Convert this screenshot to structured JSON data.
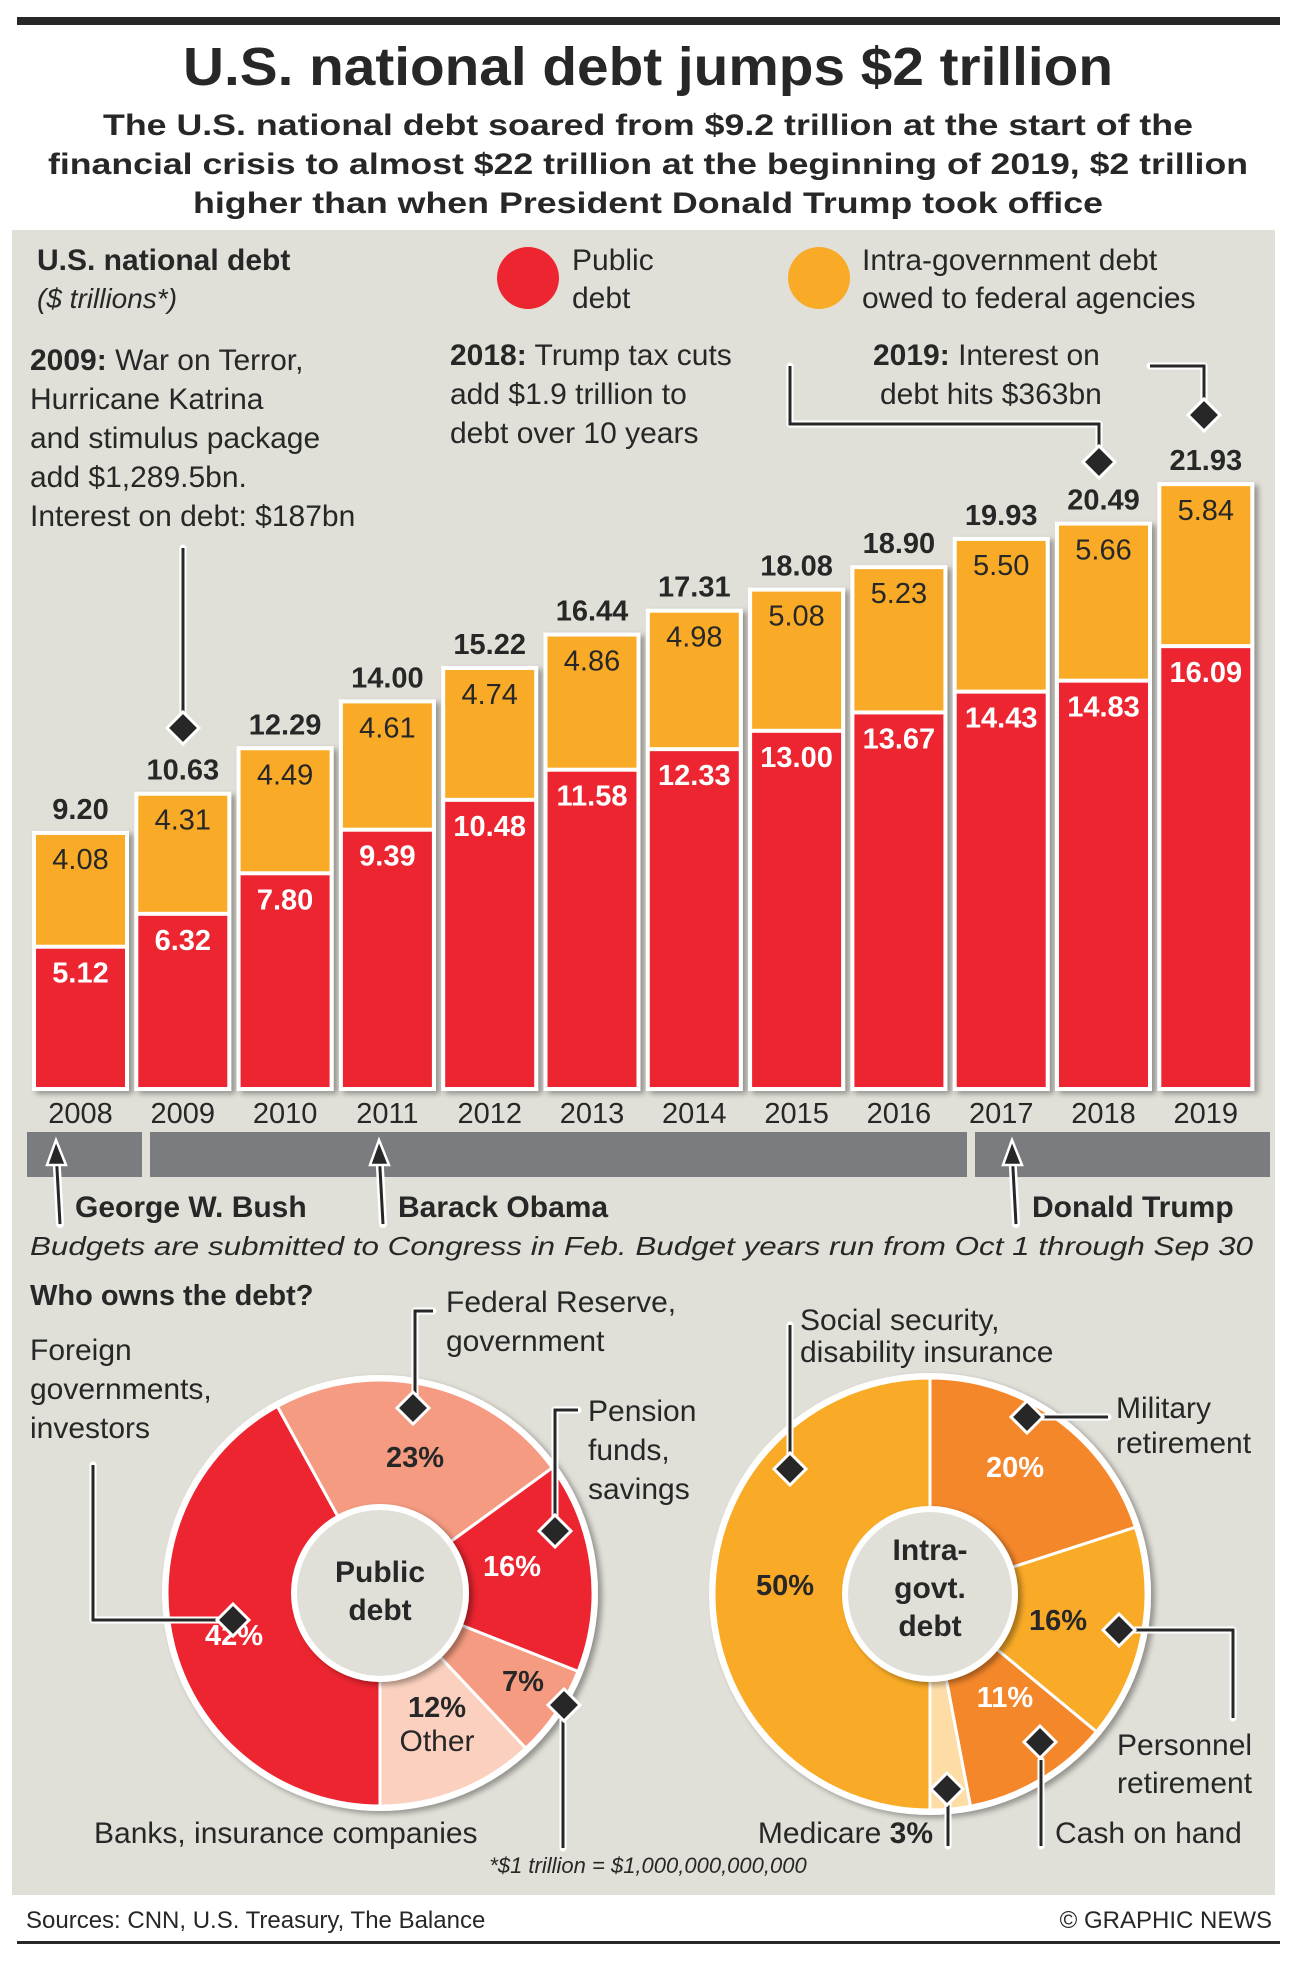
{
  "header": {
    "title": "U.S. national debt jumps $2 trillion",
    "subtitle_lines": [
      "The U.S. national debt soared from $9.2 trillion at the start of the",
      "financial crisis to almost $22 trillion at the beginning of 2019, $2 trillion",
      "higher than when President Donald Trump took office"
    ]
  },
  "colors": {
    "public": "#ec2530",
    "intra": "#f9ab27",
    "panel": "#e1e0d8",
    "text": "#272727",
    "president_bar": "#7b7c80",
    "salmon": "#f59b81",
    "light_pink": "#fbd0be",
    "dark_orange": "#f5872b",
    "pale_orange": "#fddca6"
  },
  "chart_data": [
    {
      "type": "bar",
      "stacked": true,
      "title": "U.S. national debt",
      "subtitle": "($ trillions*)",
      "xlabel": "",
      "ylabel": "$ trillions",
      "ylim": [
        0,
        22
      ],
      "grid": false,
      "legend_position": "top",
      "categories": [
        "2008",
        "2009",
        "2010",
        "2011",
        "2012",
        "2013",
        "2014",
        "2015",
        "2016",
        "2017",
        "2018",
        "2019"
      ],
      "series": [
        {
          "name": "Public debt",
          "values": [
            5.12,
            6.32,
            7.8,
            9.39,
            10.48,
            11.58,
            12.33,
            13.0,
            13.67,
            14.43,
            14.83,
            16.09
          ],
          "labels": [
            "5.12",
            "6.32",
            "7.80",
            "9.39",
            "10.48",
            "11.58",
            "12.33",
            "13.00",
            "13.67",
            "14.43",
            "14.83",
            "16.09"
          ]
        },
        {
          "name": "Intra-government debt owed to federal agencies",
          "values": [
            4.08,
            4.31,
            4.49,
            4.61,
            4.74,
            4.86,
            4.98,
            5.08,
            5.23,
            5.5,
            5.66,
            5.84
          ],
          "labels": [
            "4.08",
            "4.31",
            "4.49",
            "4.61",
            "4.74",
            "4.86",
            "4.98",
            "5.08",
            "5.23",
            "5.50",
            "5.66",
            "5.84"
          ]
        }
      ],
      "totals": [
        9.2,
        10.63,
        12.29,
        14.0,
        15.22,
        16.44,
        17.31,
        18.08,
        18.9,
        19.93,
        20.49,
        21.93
      ],
      "total_labels": [
        "9.20",
        "10.63",
        "12.29",
        "14.00",
        "15.22",
        "16.44",
        "17.31",
        "18.08",
        "18.90",
        "19.93",
        "20.49",
        "21.93"
      ],
      "legend": [
        {
          "label_lines": [
            "Public",
            "debt"
          ]
        },
        {
          "label_lines": [
            "Intra-government debt",
            "owed to federal agencies"
          ]
        }
      ],
      "annotations": [
        {
          "year": "2009",
          "bold": "2009:",
          "lines": [
            " War on Terror,",
            "Hurricane Katrina",
            "and stimulus package",
            "add $1,289.5bn.",
            "Interest on debt: $187bn"
          ]
        },
        {
          "year": "2018",
          "bold": "2018:",
          "lines": [
            " Trump tax cuts",
            "add $1.9 trillion to",
            "debt over 10 years"
          ]
        },
        {
          "year": "2019",
          "bold": "2019:",
          "lines": [
            " Interest on",
            "debt hits $363bn"
          ]
        }
      ],
      "presidents": [
        {
          "name": "George W. Bush",
          "from": "2008",
          "to": "2008"
        },
        {
          "name": "Barack Obama",
          "from": "2009",
          "to": "2016"
        },
        {
          "name": "Donald Trump",
          "from": "2017",
          "to": "2019"
        }
      ],
      "note": "Budgets are submitted to Congress in Feb. Budget years run from Oct 1 through Sep 30"
    },
    {
      "type": "pie",
      "donut": true,
      "title": "Who owns the debt?",
      "center_label_lines": [
        "Public",
        "debt"
      ],
      "slices": [
        {
          "label_lines": [
            "Foreign",
            "governments,",
            "investors"
          ],
          "value": 42,
          "value_label": "42%"
        },
        {
          "label_lines": [
            "Federal Reserve,",
            "government"
          ],
          "value": 23,
          "value_label": "23%"
        },
        {
          "label_lines": [
            "Pension",
            "funds,",
            "savings"
          ],
          "value": 16,
          "value_label": "16%"
        },
        {
          "label_lines": [
            "Banks, insurance companies"
          ],
          "value": 7,
          "value_label": "7%"
        },
        {
          "label_lines": [
            "Other"
          ],
          "value": 12,
          "value_label": "12%"
        }
      ]
    },
    {
      "type": "pie",
      "donut": true,
      "title": "Intra-govt. debt",
      "center_label_lines": [
        "Intra-",
        "govt.",
        "debt"
      ],
      "slices": [
        {
          "label_lines": [
            "Military",
            "retirement"
          ],
          "value": 20,
          "value_label": "20%"
        },
        {
          "label_lines": [
            "Personnel",
            "retirement"
          ],
          "value": 16,
          "value_label": "16%"
        },
        {
          "label_lines": [
            "Cash on hand"
          ],
          "value": 11,
          "value_label": "11%"
        },
        {
          "label_lines": [
            "Medicare"
          ],
          "value": 3,
          "value_label": "3%"
        },
        {
          "label_lines": [
            "Social security,",
            "disability insurance"
          ],
          "value": 50,
          "value_label": "50%"
        }
      ]
    }
  ],
  "footnote": "*$1 trillion = $1,000,000,000,000",
  "footer": {
    "sources": "Sources: CNN, U.S. Treasury, The Balance",
    "credit": "© GRAPHIC NEWS"
  }
}
